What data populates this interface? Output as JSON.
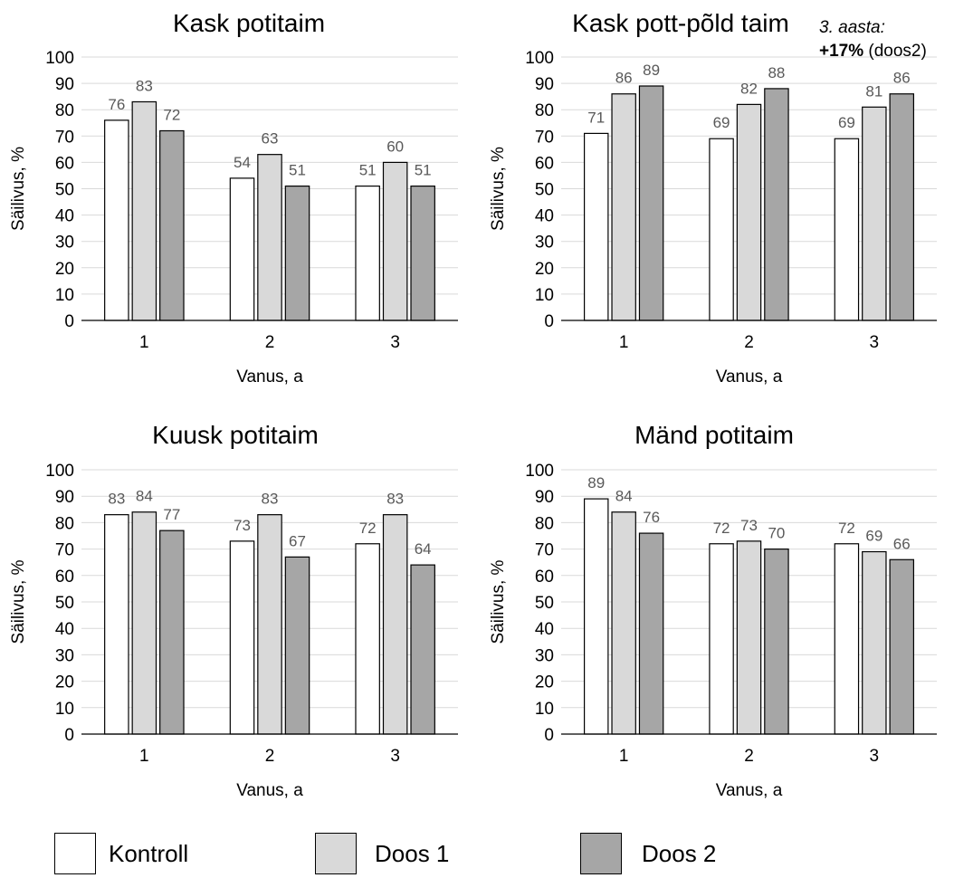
{
  "colors": {
    "kontroll": "#ffffff",
    "doos1": "#d9d9d9",
    "doos2": "#a6a6a6",
    "grid": "#d9d9d9",
    "axis": "#000000"
  },
  "legend": [
    {
      "label": "Kontroll",
      "color": "#ffffff"
    },
    {
      "label": "Doos 1",
      "color": "#d9d9d9"
    },
    {
      "label": "Doos 2",
      "color": "#a6a6a6"
    }
  ],
  "annotation": {
    "line1": "3. aasta:",
    "bold": "+17%",
    "rest": " (doos2)"
  },
  "chart_data": [
    {
      "type": "bar",
      "title": "Kask potitaim",
      "xlabel": "Vanus, a",
      "ylabel": "Säilivus, %",
      "ylim": [
        0,
        100
      ],
      "yticks": [
        0,
        10,
        20,
        30,
        40,
        50,
        60,
        70,
        80,
        90,
        100
      ],
      "categories": [
        "1",
        "2",
        "3"
      ],
      "grid": true,
      "series": [
        {
          "name": "Kontroll",
          "values": [
            76,
            54,
            51
          ]
        },
        {
          "name": "Doos 1",
          "values": [
            83,
            63,
            60
          ]
        },
        {
          "name": "Doos 2",
          "values": [
            72,
            51,
            51
          ]
        }
      ]
    },
    {
      "type": "bar",
      "title": "Kask pott-põld taim",
      "xlabel": "Vanus, a",
      "ylabel": "Säilivus, %",
      "ylim": [
        0,
        100
      ],
      "yticks": [
        0,
        10,
        20,
        30,
        40,
        50,
        60,
        70,
        80,
        90,
        100
      ],
      "categories": [
        "1",
        "2",
        "3"
      ],
      "grid": true,
      "series": [
        {
          "name": "Kontroll",
          "values": [
            71,
            69,
            69
          ]
        },
        {
          "name": "Doos 1",
          "values": [
            86,
            82,
            81
          ]
        },
        {
          "name": "Doos 2",
          "values": [
            89,
            88,
            86
          ]
        }
      ]
    },
    {
      "type": "bar",
      "title": "Kuusk potitaim",
      "xlabel": "Vanus, a",
      "ylabel": "Säilivus, %",
      "ylim": [
        0,
        100
      ],
      "yticks": [
        0,
        10,
        20,
        30,
        40,
        50,
        60,
        70,
        80,
        90,
        100
      ],
      "categories": [
        "1",
        "2",
        "3"
      ],
      "grid": true,
      "series": [
        {
          "name": "Kontroll",
          "values": [
            83,
            73,
            72
          ]
        },
        {
          "name": "Doos 1",
          "values": [
            84,
            83,
            83
          ]
        },
        {
          "name": "Doos 2",
          "values": [
            77,
            67,
            64
          ]
        }
      ]
    },
    {
      "type": "bar",
      "title": "Mänd potitaim",
      "xlabel": "Vanus, a",
      "ylabel": "Säilivus, %",
      "ylim": [
        0,
        100
      ],
      "yticks": [
        0,
        10,
        20,
        30,
        40,
        50,
        60,
        70,
        80,
        90,
        100
      ],
      "categories": [
        "1",
        "2",
        "3"
      ],
      "grid": true,
      "series": [
        {
          "name": "Kontroll",
          "values": [
            89,
            72,
            72
          ]
        },
        {
          "name": "Doos 1",
          "values": [
            84,
            73,
            69
          ]
        },
        {
          "name": "Doos 2",
          "values": [
            76,
            70,
            66
          ]
        }
      ]
    }
  ]
}
